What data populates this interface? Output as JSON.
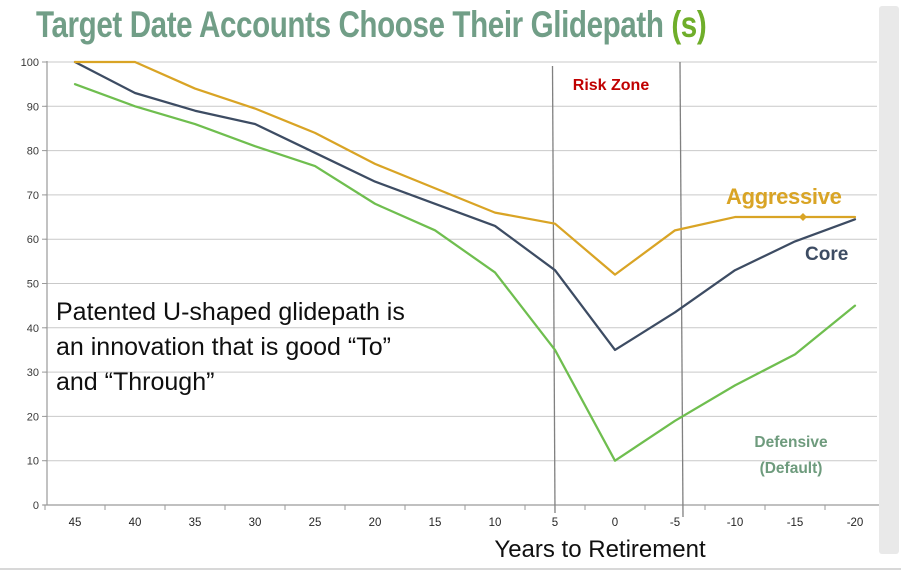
{
  "title": {
    "main": "Target Date Accounts Choose Their Glidepath ",
    "suffix": "(s)"
  },
  "colors": {
    "title_sage": "#719E87",
    "title_suffix_green": "#6FAE2A",
    "aggressive": "#D9A425",
    "core": "#3D4C63",
    "defensive": "#6FBE4F",
    "risk_red": "#C00000",
    "defensive_label": "#6E9B7D",
    "grid": "#c9c9c9",
    "axis": "#9a9a9a",
    "tick_text": "#3a3a3a",
    "risk_line": "#808080"
  },
  "risk_zone": {
    "label": "Risk Zone",
    "x_from": 5,
    "x_to": -5.5
  },
  "legend": {
    "aggressive": "Aggressive",
    "core": "Core",
    "defensive_line1": "Defensive",
    "defensive_line2": "(Default)"
  },
  "annotation": {
    "lines": [
      "Patented U-shaped glidepath is",
      "an innovation that is good “To”",
      "and “Through”"
    ]
  },
  "chart_data": {
    "type": "line",
    "title": "Target Date Accounts Choose Their Glidepath (s)",
    "xlabel": "Years to Retirement",
    "ylabel": "",
    "x": [
      45,
      40,
      35,
      30,
      25,
      20,
      15,
      10,
      5,
      0,
      -5,
      -10,
      -15,
      -20
    ],
    "series": [
      {
        "name": "Aggressive",
        "color": "#D9A425",
        "values": [
          100,
          100,
          94,
          89.5,
          84,
          77,
          71.5,
          66,
          63.5,
          52,
          62,
          65,
          65,
          65
        ]
      },
      {
        "name": "Core",
        "color": "#3D4C63",
        "values": [
          100,
          93,
          89,
          86,
          79.5,
          73,
          68,
          63,
          53,
          35,
          43.5,
          53,
          59.5,
          64.5
        ]
      },
      {
        "name": "Defensive (Default)",
        "color": "#6FBE4F",
        "values": [
          95,
          90,
          86,
          81,
          76.5,
          68,
          62,
          52.5,
          35,
          10,
          19,
          27,
          34,
          45
        ]
      }
    ],
    "ylim": [
      0,
      100
    ],
    "yticks": [
      0,
      10,
      20,
      30,
      40,
      50,
      60,
      70,
      80,
      90,
      100
    ],
    "grid": true,
    "legend_position": "right-of-lines",
    "risk_zone_band_x": [
      5,
      -5.5
    ]
  }
}
